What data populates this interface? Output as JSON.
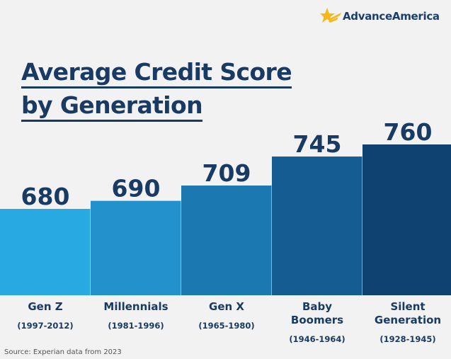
{
  "brand": {
    "logo_text": "AdvanceAmerica",
    "logo_icon": "star-burst-icon",
    "logo_color": "#1a3f6e",
    "star_color": "#f4b81c"
  },
  "title_lines": [
    "Average Credit Score",
    "by Generation"
  ],
  "source": "Source: Experian data from 2023",
  "colors": {
    "background": "#f2f2f2",
    "text": "#183a63",
    "bars": [
      "#29a9e1",
      "#2392cc",
      "#1c78b1",
      "#145c91",
      "#0f4270"
    ]
  },
  "chart_data": {
    "type": "bar",
    "title": "Average Credit Score by Generation",
    "categories": [
      "Gen Z",
      "Millennials",
      "Gen X",
      "Baby Boomers",
      "Silent Generation"
    ],
    "category_lines": [
      [
        "Gen Z"
      ],
      [
        "Millennials"
      ],
      [
        "Gen X"
      ],
      [
        "Baby",
        "Boomers"
      ],
      [
        "Silent",
        "Generation"
      ]
    ],
    "ranges": [
      "(1997-2012)",
      "(1981-1996)",
      "(1965-1980)",
      "(1946-1964)",
      "(1928-1945)"
    ],
    "values": [
      680,
      690,
      709,
      745,
      760
    ],
    "value_labels": [
      "680",
      "690",
      "709",
      "745",
      "760"
    ],
    "xlabel": "",
    "ylabel": "",
    "grid": false,
    "legend": "none"
  }
}
